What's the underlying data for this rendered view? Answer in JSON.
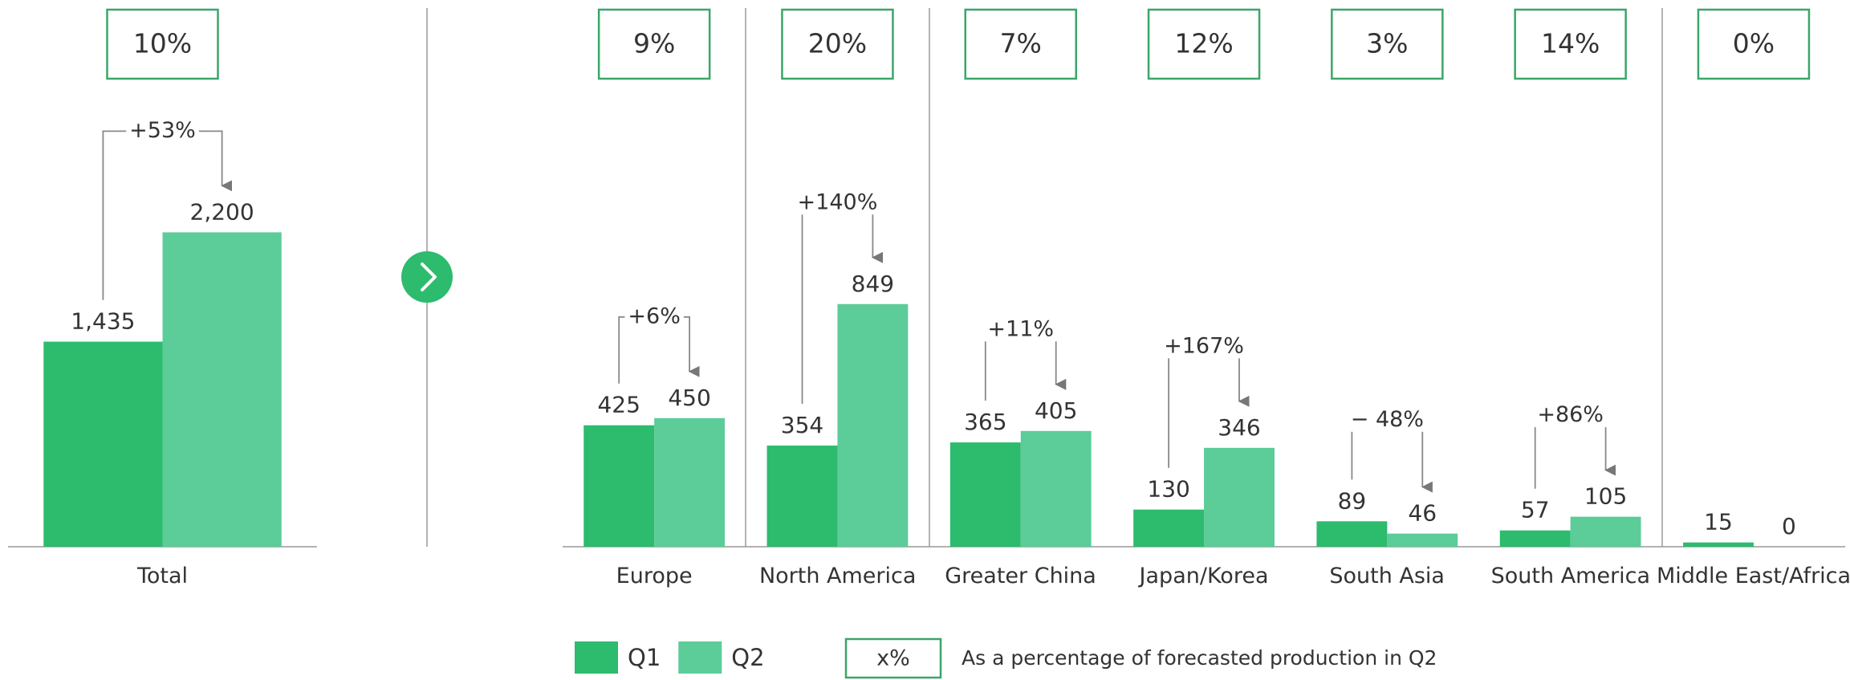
{
  "chart_data": [
    {
      "type": "bar",
      "categories": [
        "Total"
      ],
      "series": [
        {
          "name": "Q1",
          "color": "#2dbb6e",
          "values": [
            1435
          ],
          "value_labels": [
            "1,435"
          ]
        },
        {
          "name": "Q2",
          "color": "#5ccc99",
          "values": [
            2200
          ],
          "value_labels": [
            "2,200"
          ]
        }
      ],
      "shares": [
        10
      ],
      "share_labels": [
        "10%"
      ],
      "changes": [
        53
      ],
      "change_labels": [
        "+53%"
      ],
      "ylim": [
        0,
        3000
      ]
    },
    {
      "type": "bar",
      "categories": [
        "Europe",
        "North America",
        "Greater China",
        "Japan/Korea",
        "South Asia",
        "South America",
        "Middle East/Africa"
      ],
      "series": [
        {
          "name": "Q1",
          "color": "#2dbb6e",
          "values": [
            425,
            354,
            365,
            130,
            89,
            57,
            15
          ]
        },
        {
          "name": "Q2",
          "color": "#5ccc99",
          "values": [
            450,
            849,
            405,
            346,
            46,
            105,
            0
          ]
        }
      ],
      "shares": [
        9,
        20,
        7,
        12,
        3,
        14,
        0
      ],
      "share_labels": [
        "9%",
        "20%",
        "7%",
        "12%",
        "3%",
        "14%",
        "0%"
      ],
      "changes": [
        6,
        140,
        11,
        167,
        -48,
        86,
        null
      ],
      "change_labels": [
        "+6%",
        "+140%",
        "+11%",
        "+167%",
        "− 48%",
        "+86%",
        null
      ],
      "ylim": [
        0,
        1500
      ],
      "legend": true,
      "note_box": "x%",
      "note": "As a percentage of forecasted production in Q2"
    }
  ]
}
